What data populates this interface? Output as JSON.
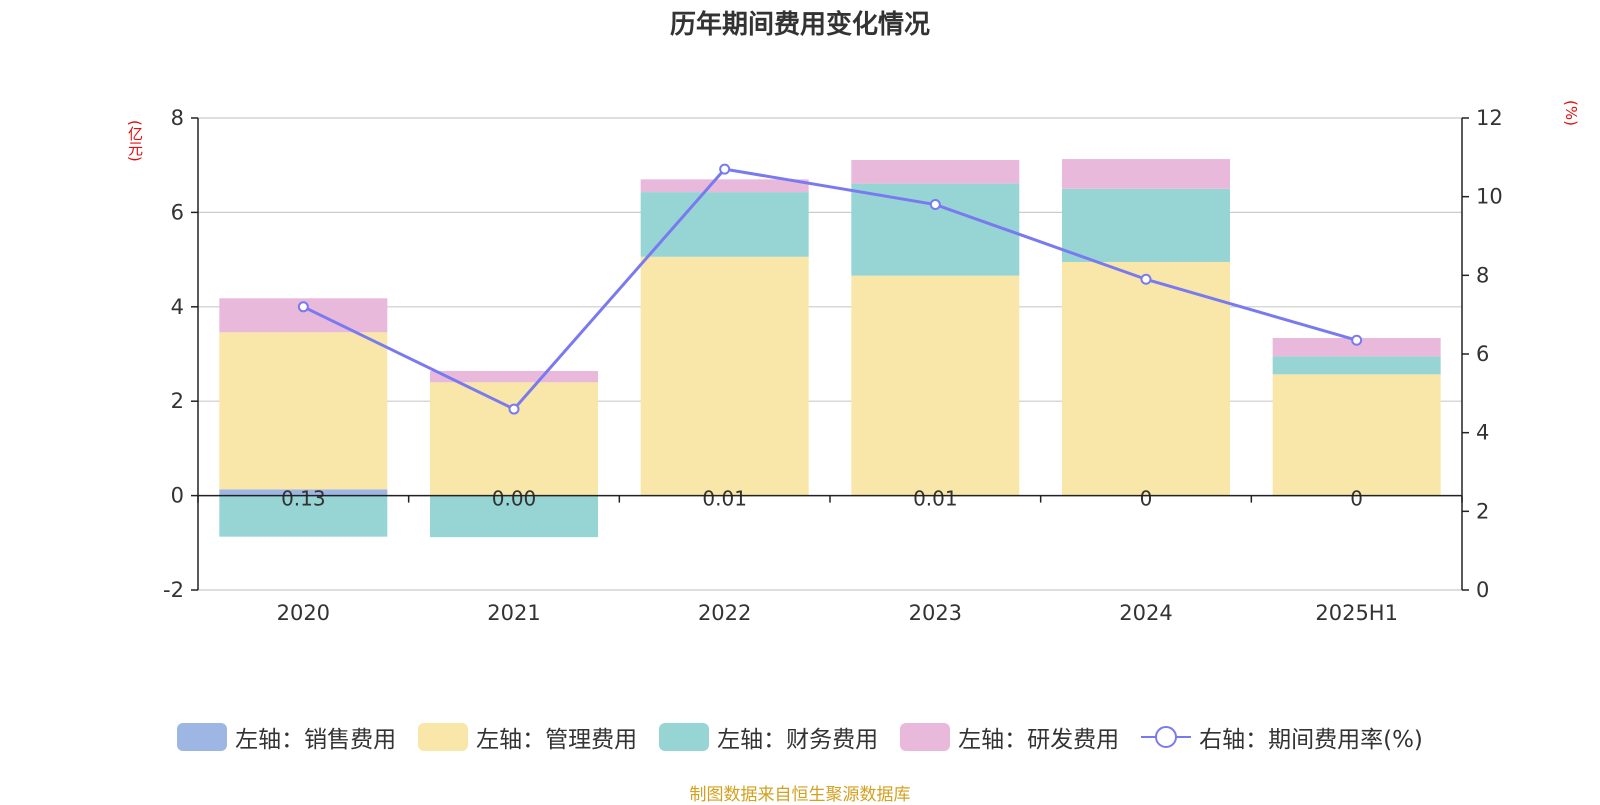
{
  "title": "历年期间费用变化情况",
  "left_unit": "(亿元)",
  "right_unit": "(%)",
  "source": "制图数据来自恒生聚源数据库",
  "colors": {
    "sales": "#9db6e3",
    "admin": "#f8e7a8",
    "finance": "#96d5d4",
    "rd": "#e8b9da",
    "rate": "#7a7af0"
  },
  "legend": [
    {
      "label": "左轴：销售费用",
      "color": "#9db6e3",
      "kind": "bar"
    },
    {
      "label": "左轴：管理费用",
      "color": "#f8e7a8",
      "kind": "bar"
    },
    {
      "label": "左轴：财务费用",
      "color": "#96d5d4",
      "kind": "bar"
    },
    {
      "label": "左轴：研发费用",
      "color": "#e8b9da",
      "kind": "bar"
    },
    {
      "label": "右轴：期间费用率(%)",
      "color": "#7a7af0",
      "kind": "line"
    }
  ],
  "chart_data": {
    "type": "bar",
    "stacked": true,
    "categories": [
      "2020",
      "2021",
      "2022",
      "2023",
      "2024",
      "2025H1"
    ],
    "ylim": [
      -2,
      8
    ],
    "yticks": [
      -2,
      0,
      2,
      4,
      6,
      8
    ],
    "y2lim": [
      0,
      12
    ],
    "y2ticks": [
      0,
      2,
      4,
      6,
      8,
      10,
      12
    ],
    "series": [
      {
        "name": "左轴：销售费用",
        "axis": "left",
        "values": [
          0.13,
          0.0,
          0.01,
          0.01,
          0,
          0
        ]
      },
      {
        "name": "左轴：管理费用",
        "axis": "left",
        "values": [
          3.33,
          2.4,
          5.05,
          4.65,
          4.95,
          2.57
        ]
      },
      {
        "name": "左轴：财务费用",
        "axis": "left",
        "values": [
          -0.87,
          -0.88,
          1.37,
          1.95,
          1.55,
          0.38
        ]
      },
      {
        "name": "左轴：研发费用",
        "axis": "left",
        "values": [
          0.72,
          0.24,
          0.27,
          0.5,
          0.63,
          0.39
        ]
      },
      {
        "name": "右轴：期间费用率(%)",
        "axis": "right",
        "type": "line",
        "values": [
          7.2,
          4.6,
          10.7,
          9.8,
          7.9,
          6.35
        ]
      }
    ],
    "data_labels": [
      "0.13",
      "0.00",
      "0.01",
      "0.01",
      "0",
      "0"
    ],
    "grid": true,
    "legend_position": "bottom"
  }
}
